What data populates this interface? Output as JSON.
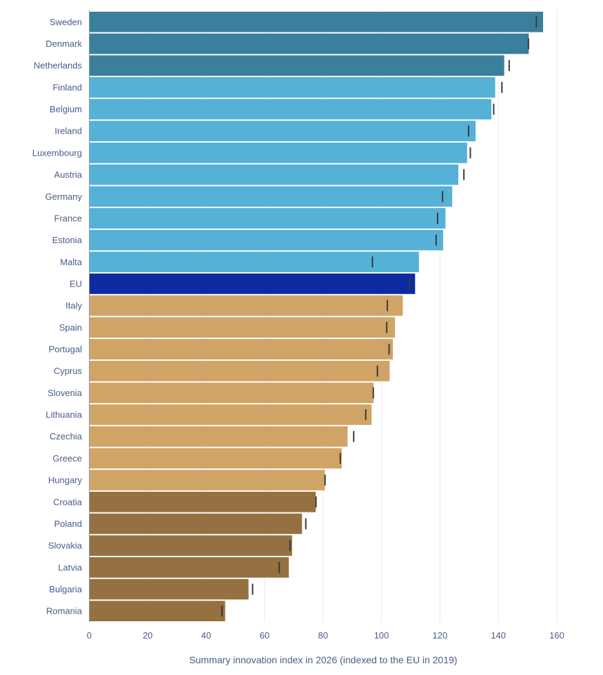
{
  "chart_data": {
    "type": "bar",
    "orientation": "horizontal",
    "title": "",
    "xlabel": "Summary innovation index in 2026 (indexed to the EU in 2019)",
    "ylabel": "",
    "xlim": [
      0,
      160
    ],
    "xticks": [
      0,
      20,
      40,
      60,
      80,
      100,
      120,
      140,
      160
    ],
    "grid": "vertical",
    "legend": "none",
    "categories": [
      "Sweden",
      "Denmark",
      "Netherlands",
      "Finland",
      "Belgium",
      "Ireland",
      "Luxembourg",
      "Austria",
      "Germany",
      "France",
      "Estonia",
      "Malta",
      "EU",
      "Italy",
      "Spain",
      "Portugal",
      "Cyprus",
      "Slovenia",
      "Lithuania",
      "Czechia",
      "Greece",
      "Hungary",
      "Croatia",
      "Poland",
      "Slovakia",
      "Latvia",
      "Bulgaria",
      "Romania"
    ],
    "series": [
      {
        "values": [
          155.3,
          150.4,
          142.0,
          138.9,
          137.6,
          132.2,
          129.3,
          126.3,
          124.2,
          121.9,
          121.1,
          112.8,
          111.5,
          107.3,
          104.6,
          103.9,
          102.8,
          97.3,
          96.6,
          88.4,
          86.4,
          80.6,
          77.5,
          72.8,
          69.4,
          68.3,
          54.5,
          46.5
        ]
      },
      {
        "marker": "tick",
        "values": [
          153.0,
          150.3,
          143.7,
          141.2,
          138.4,
          129.8,
          130.4,
          128.2,
          120.9,
          119.2,
          118.7,
          96.9,
          109.7,
          102.0,
          101.8,
          102.6,
          98.6,
          97.2,
          94.6,
          90.5,
          85.9,
          80.7,
          77.6,
          74.1,
          68.7,
          65.0,
          55.9,
          45.4
        ]
      }
    ],
    "colors": {
      "leaders": "#3a7f9b",
      "strong": "#55b1d6",
      "eu": "#0c2ba3",
      "moderate": "#cfa466",
      "emerging": "#957040",
      "marker": "#3a3a3a",
      "text": "#4a5b8c"
    },
    "bar_groups": [
      "leaders",
      "leaders",
      "leaders",
      "strong",
      "strong",
      "strong",
      "strong",
      "strong",
      "strong",
      "strong",
      "strong",
      "strong",
      "eu",
      "moderate",
      "moderate",
      "moderate",
      "moderate",
      "moderate",
      "moderate",
      "moderate",
      "moderate",
      "moderate",
      "emerging",
      "emerging",
      "emerging",
      "emerging",
      "emerging",
      "emerging"
    ]
  }
}
